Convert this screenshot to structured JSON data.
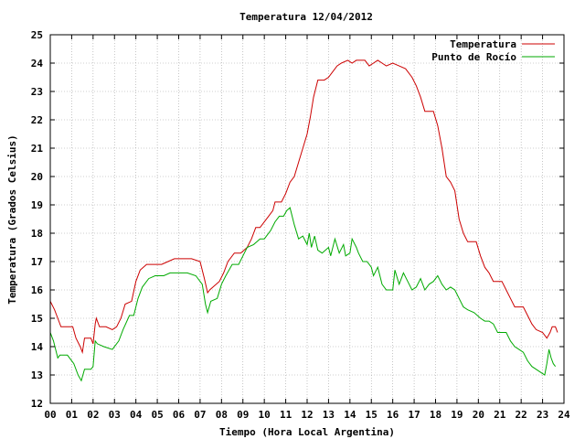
{
  "chart_data": {
    "type": "line",
    "title": "Temperatura 12/04/2012",
    "xlabel": "Tiempo (Hora Local Argentina)",
    "ylabel": "Temperatura (Grados Celsius)",
    "xlim": [
      0,
      24
    ],
    "ylim": [
      12,
      25
    ],
    "grid": true,
    "legend_position": "top-right",
    "x_ticks": [
      "00",
      "01",
      "02",
      "03",
      "04",
      "05",
      "06",
      "07",
      "08",
      "09",
      "10",
      "11",
      "12",
      "13",
      "14",
      "15",
      "16",
      "17",
      "18",
      "19",
      "20",
      "21",
      "22",
      "23",
      "24"
    ],
    "y_ticks": [
      "12",
      "13",
      "14",
      "15",
      "16",
      "17",
      "18",
      "19",
      "20",
      "21",
      "22",
      "23",
      "24",
      "25"
    ],
    "series": [
      {
        "name": "Temperatura",
        "color": "#cc0000",
        "points": [
          [
            0.0,
            15.6
          ],
          [
            0.2,
            15.3
          ],
          [
            0.35,
            15.0
          ],
          [
            0.5,
            14.7
          ],
          [
            0.8,
            14.7
          ],
          [
            1.05,
            14.7
          ],
          [
            1.2,
            14.3
          ],
          [
            1.4,
            14.0
          ],
          [
            1.5,
            13.8
          ],
          [
            1.6,
            14.3
          ],
          [
            1.9,
            14.3
          ],
          [
            2.0,
            14.1
          ],
          [
            2.1,
            14.8
          ],
          [
            2.15,
            15.0
          ],
          [
            2.3,
            14.7
          ],
          [
            2.6,
            14.7
          ],
          [
            2.9,
            14.6
          ],
          [
            3.1,
            14.7
          ],
          [
            3.3,
            15.0
          ],
          [
            3.5,
            15.5
          ],
          [
            3.8,
            15.6
          ],
          [
            4.0,
            16.3
          ],
          [
            4.2,
            16.7
          ],
          [
            4.5,
            16.9
          ],
          [
            4.8,
            16.9
          ],
          [
            5.2,
            16.9
          ],
          [
            5.5,
            17.0
          ],
          [
            5.8,
            17.1
          ],
          [
            6.2,
            17.1
          ],
          [
            6.6,
            17.1
          ],
          [
            7.0,
            17.0
          ],
          [
            7.2,
            16.4
          ],
          [
            7.35,
            15.9
          ],
          [
            7.45,
            16.0
          ],
          [
            7.6,
            16.1
          ],
          [
            7.9,
            16.3
          ],
          [
            8.1,
            16.6
          ],
          [
            8.3,
            17.0
          ],
          [
            8.6,
            17.3
          ],
          [
            8.9,
            17.3
          ],
          [
            9.2,
            17.5
          ],
          [
            9.4,
            17.8
          ],
          [
            9.6,
            18.2
          ],
          [
            9.8,
            18.2
          ],
          [
            10.0,
            18.4
          ],
          [
            10.2,
            18.6
          ],
          [
            10.4,
            18.8
          ],
          [
            10.5,
            19.1
          ],
          [
            10.8,
            19.1
          ],
          [
            11.0,
            19.4
          ],
          [
            11.2,
            19.8
          ],
          [
            11.4,
            20.0
          ],
          [
            11.6,
            20.5
          ],
          [
            11.8,
            21.0
          ],
          [
            12.0,
            21.5
          ],
          [
            12.15,
            22.1
          ],
          [
            12.3,
            22.8
          ],
          [
            12.5,
            23.4
          ],
          [
            12.8,
            23.4
          ],
          [
            13.0,
            23.5
          ],
          [
            13.2,
            23.7
          ],
          [
            13.4,
            23.9
          ],
          [
            13.6,
            24.0
          ],
          [
            13.9,
            24.1
          ],
          [
            14.1,
            24.0
          ],
          [
            14.3,
            24.1
          ],
          [
            14.5,
            24.1
          ],
          [
            14.7,
            24.1
          ],
          [
            14.9,
            23.9
          ],
          [
            15.1,
            24.0
          ],
          [
            15.3,
            24.1
          ],
          [
            15.5,
            24.0
          ],
          [
            15.7,
            23.9
          ],
          [
            16.0,
            24.0
          ],
          [
            16.3,
            23.9
          ],
          [
            16.6,
            23.8
          ],
          [
            16.9,
            23.5
          ],
          [
            17.1,
            23.2
          ],
          [
            17.3,
            22.8
          ],
          [
            17.5,
            22.3
          ],
          [
            17.9,
            22.3
          ],
          [
            18.1,
            21.8
          ],
          [
            18.3,
            21.0
          ],
          [
            18.5,
            20.0
          ],
          [
            18.7,
            19.8
          ],
          [
            18.9,
            19.5
          ],
          [
            19.1,
            18.5
          ],
          [
            19.3,
            18.0
          ],
          [
            19.5,
            17.7
          ],
          [
            19.9,
            17.7
          ],
          [
            20.1,
            17.2
          ],
          [
            20.3,
            16.8
          ],
          [
            20.5,
            16.6
          ],
          [
            20.7,
            16.3
          ],
          [
            21.1,
            16.3
          ],
          [
            21.3,
            16.0
          ],
          [
            21.5,
            15.7
          ],
          [
            21.7,
            15.4
          ],
          [
            22.1,
            15.4
          ],
          [
            22.3,
            15.1
          ],
          [
            22.5,
            14.8
          ],
          [
            22.7,
            14.6
          ],
          [
            23.0,
            14.5
          ],
          [
            23.2,
            14.3
          ],
          [
            23.35,
            14.5
          ],
          [
            23.45,
            14.7
          ],
          [
            23.6,
            14.7
          ],
          [
            23.7,
            14.5
          ]
        ]
      },
      {
        "name": "Punto de Rocío",
        "color": "#00aa00",
        "points": [
          [
            0.0,
            14.5
          ],
          [
            0.15,
            14.2
          ],
          [
            0.35,
            13.6
          ],
          [
            0.45,
            13.7
          ],
          [
            0.8,
            13.7
          ],
          [
            1.1,
            13.4
          ],
          [
            1.3,
            13.0
          ],
          [
            1.45,
            12.8
          ],
          [
            1.6,
            13.2
          ],
          [
            1.9,
            13.2
          ],
          [
            2.0,
            13.3
          ],
          [
            2.1,
            14.2
          ],
          [
            2.2,
            14.1
          ],
          [
            2.5,
            14.0
          ],
          [
            2.9,
            13.9
          ],
          [
            3.2,
            14.2
          ],
          [
            3.4,
            14.6
          ],
          [
            3.7,
            15.1
          ],
          [
            3.9,
            15.1
          ],
          [
            4.1,
            15.7
          ],
          [
            4.3,
            16.1
          ],
          [
            4.6,
            16.4
          ],
          [
            4.9,
            16.5
          ],
          [
            5.3,
            16.5
          ],
          [
            5.6,
            16.6
          ],
          [
            6.0,
            16.6
          ],
          [
            6.4,
            16.6
          ],
          [
            6.8,
            16.5
          ],
          [
            7.1,
            16.2
          ],
          [
            7.25,
            15.5
          ],
          [
            7.35,
            15.2
          ],
          [
            7.5,
            15.6
          ],
          [
            7.8,
            15.7
          ],
          [
            8.0,
            16.2
          ],
          [
            8.2,
            16.5
          ],
          [
            8.5,
            16.9
          ],
          [
            8.8,
            16.9
          ],
          [
            9.0,
            17.2
          ],
          [
            9.2,
            17.5
          ],
          [
            9.5,
            17.6
          ],
          [
            9.8,
            17.8
          ],
          [
            10.0,
            17.8
          ],
          [
            10.3,
            18.1
          ],
          [
            10.5,
            18.4
          ],
          [
            10.7,
            18.6
          ],
          [
            10.9,
            18.6
          ],
          [
            11.05,
            18.8
          ],
          [
            11.2,
            18.9
          ],
          [
            11.4,
            18.3
          ],
          [
            11.6,
            17.8
          ],
          [
            11.8,
            17.9
          ],
          [
            12.0,
            17.6
          ],
          [
            12.1,
            18.0
          ],
          [
            12.2,
            17.5
          ],
          [
            12.35,
            17.9
          ],
          [
            12.5,
            17.4
          ],
          [
            12.7,
            17.3
          ],
          [
            13.0,
            17.5
          ],
          [
            13.1,
            17.2
          ],
          [
            13.3,
            17.8
          ],
          [
            13.5,
            17.3
          ],
          [
            13.7,
            17.6
          ],
          [
            13.8,
            17.2
          ],
          [
            14.0,
            17.3
          ],
          [
            14.1,
            17.8
          ],
          [
            14.3,
            17.5
          ],
          [
            14.4,
            17.3
          ],
          [
            14.6,
            17.0
          ],
          [
            14.8,
            17.0
          ],
          [
            15.0,
            16.8
          ],
          [
            15.1,
            16.5
          ],
          [
            15.3,
            16.8
          ],
          [
            15.5,
            16.2
          ],
          [
            15.7,
            16.0
          ],
          [
            16.0,
            16.0
          ],
          [
            16.1,
            16.7
          ],
          [
            16.3,
            16.2
          ],
          [
            16.5,
            16.6
          ],
          [
            16.7,
            16.3
          ],
          [
            16.9,
            16.0
          ],
          [
            17.1,
            16.1
          ],
          [
            17.3,
            16.4
          ],
          [
            17.5,
            16.0
          ],
          [
            17.7,
            16.2
          ],
          [
            17.9,
            16.3
          ],
          [
            18.1,
            16.5
          ],
          [
            18.3,
            16.2
          ],
          [
            18.5,
            16.0
          ],
          [
            18.7,
            16.1
          ],
          [
            18.9,
            16.0
          ],
          [
            19.1,
            15.7
          ],
          [
            19.3,
            15.4
          ],
          [
            19.5,
            15.3
          ],
          [
            19.8,
            15.2
          ],
          [
            20.1,
            15.0
          ],
          [
            20.3,
            14.9
          ],
          [
            20.5,
            14.9
          ],
          [
            20.7,
            14.8
          ],
          [
            20.9,
            14.5
          ],
          [
            21.1,
            14.5
          ],
          [
            21.3,
            14.5
          ],
          [
            21.5,
            14.2
          ],
          [
            21.7,
            14.0
          ],
          [
            21.9,
            13.9
          ],
          [
            22.1,
            13.8
          ],
          [
            22.3,
            13.5
          ],
          [
            22.5,
            13.3
          ],
          [
            22.7,
            13.2
          ],
          [
            22.9,
            13.1
          ],
          [
            23.1,
            13.0
          ],
          [
            23.2,
            13.4
          ],
          [
            23.3,
            13.9
          ],
          [
            23.4,
            13.6
          ],
          [
            23.5,
            13.4
          ],
          [
            23.6,
            13.3
          ]
        ]
      }
    ]
  }
}
